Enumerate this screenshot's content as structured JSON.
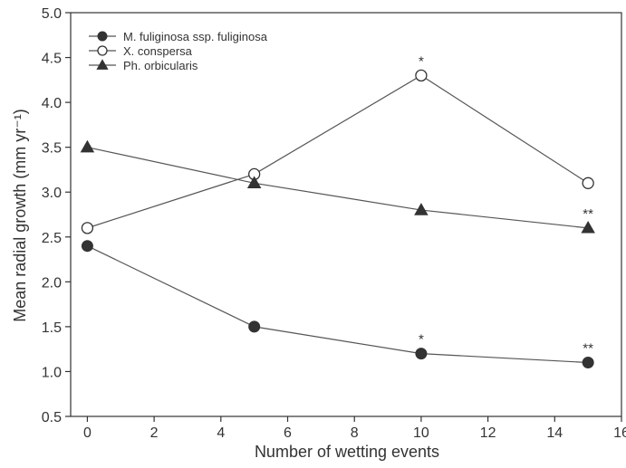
{
  "chart_data": {
    "type": "line",
    "title": "",
    "xlabel": "Number of wetting events",
    "ylabel": "Mean radial growth (mm yr⁻¹)",
    "xlim": [
      -0.5,
      16
    ],
    "ylim": [
      0.5,
      5.0
    ],
    "x_ticks": [
      0,
      2,
      4,
      6,
      8,
      10,
      12,
      14,
      16
    ],
    "y_ticks": [
      "0.5",
      "1.0",
      "1.5",
      "2.0",
      "2.5",
      "3.0",
      "3.5",
      "4.0",
      "4.5",
      "5.0"
    ],
    "grid": false,
    "legend_position": "top-left",
    "series": [
      {
        "name": "M. fuliginosa ssp. fuliginosa",
        "marker": "filled-circle",
        "x": [
          0,
          5,
          10,
          15
        ],
        "y": [
          2.4,
          1.5,
          1.2,
          1.1
        ]
      },
      {
        "name": "X. conspersa",
        "marker": "open-circle",
        "x": [
          0,
          5,
          10,
          15
        ],
        "y": [
          2.6,
          3.2,
          4.3,
          3.1
        ]
      },
      {
        "name": "Ph. orbicularis",
        "marker": "filled-triangle",
        "x": [
          0,
          5,
          10,
          15
        ],
        "y": [
          3.5,
          3.1,
          2.8,
          2.6
        ]
      }
    ],
    "annotations": [
      {
        "text": "*",
        "x": 10,
        "y": 4.3
      },
      {
        "text": "*",
        "x": 10,
        "y": 1.2
      },
      {
        "text": "**",
        "x": 15,
        "y": 2.6
      },
      {
        "text": "**",
        "x": 15,
        "y": 1.1
      }
    ],
    "colors": {
      "axis": "#333333",
      "line": "#555555",
      "marker_fill": "#333333",
      "marker_open_fill": "#ffffff"
    }
  }
}
